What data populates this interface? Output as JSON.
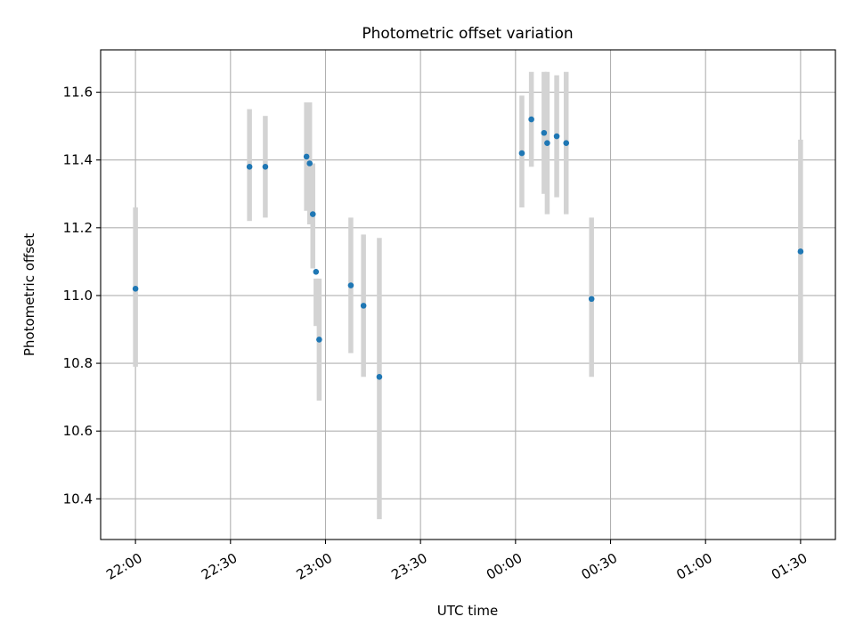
{
  "chart_data": {
    "type": "scatter",
    "title": "Photometric offset variation",
    "xlabel": "UTC time",
    "ylabel": "Photometric offset",
    "grid": true,
    "x_unit": "UTC time (HH:MM)",
    "xlim": [
      "21:49",
      "01:41"
    ],
    "ylim": [
      10.28,
      11.725
    ],
    "x_ticks": [
      "22:00",
      "22:30",
      "23:00",
      "23:30",
      "00:00",
      "00:30",
      "01:00",
      "01:30"
    ],
    "y_ticks": [
      10.4,
      10.6,
      10.8,
      11.0,
      11.2,
      11.4,
      11.6
    ],
    "y_tick_labels": [
      "10.4",
      "10.6",
      "10.8",
      "11.0",
      "11.2",
      "11.4",
      "11.6"
    ],
    "colors": {
      "marker": "#1f77b4",
      "error_bar": "#d3d3d3"
    },
    "series": [
      {
        "points": [
          {
            "x": "22:00",
            "y": 11.02,
            "low": 10.79,
            "high": 11.26
          },
          {
            "x": "22:36",
            "y": 11.38,
            "low": 11.22,
            "high": 11.55
          },
          {
            "x": "22:41",
            "y": 11.38,
            "low": 11.23,
            "high": 11.53
          },
          {
            "x": "22:54",
            "y": 11.41,
            "low": 11.25,
            "high": 11.57
          },
          {
            "x": "22:55",
            "y": 11.39,
            "low": 11.21,
            "high": 11.57
          },
          {
            "x": "22:56",
            "y": 11.24,
            "low": 11.08,
            "high": 11.39
          },
          {
            "x": "22:57",
            "y": 11.07,
            "low": 10.91,
            "high": 11.05
          },
          {
            "x": "22:58",
            "y": 10.87,
            "low": 10.69,
            "high": 11.05
          },
          {
            "x": "23:08",
            "y": 11.03,
            "low": 10.83,
            "high": 11.23
          },
          {
            "x": "23:12",
            "y": 10.97,
            "low": 10.76,
            "high": 11.18
          },
          {
            "x": "23:17",
            "y": 10.76,
            "low": 10.34,
            "high": 11.17
          },
          {
            "x": "00:02",
            "y": 11.42,
            "low": 11.26,
            "high": 11.59
          },
          {
            "x": "00:05",
            "y": 11.52,
            "low": 11.38,
            "high": 11.66
          },
          {
            "x": "00:09",
            "y": 11.48,
            "low": 11.3,
            "high": 11.66
          },
          {
            "x": "00:10",
            "y": 11.45,
            "low": 11.24,
            "high": 11.66
          },
          {
            "x": "00:13",
            "y": 11.47,
            "low": 11.29,
            "high": 11.65
          },
          {
            "x": "00:16",
            "y": 11.45,
            "low": 11.24,
            "high": 11.66
          },
          {
            "x": "00:24",
            "y": 10.99,
            "low": 10.76,
            "high": 11.23
          },
          {
            "x": "01:30",
            "y": 11.13,
            "low": 10.8,
            "high": 11.46
          }
        ]
      }
    ]
  }
}
